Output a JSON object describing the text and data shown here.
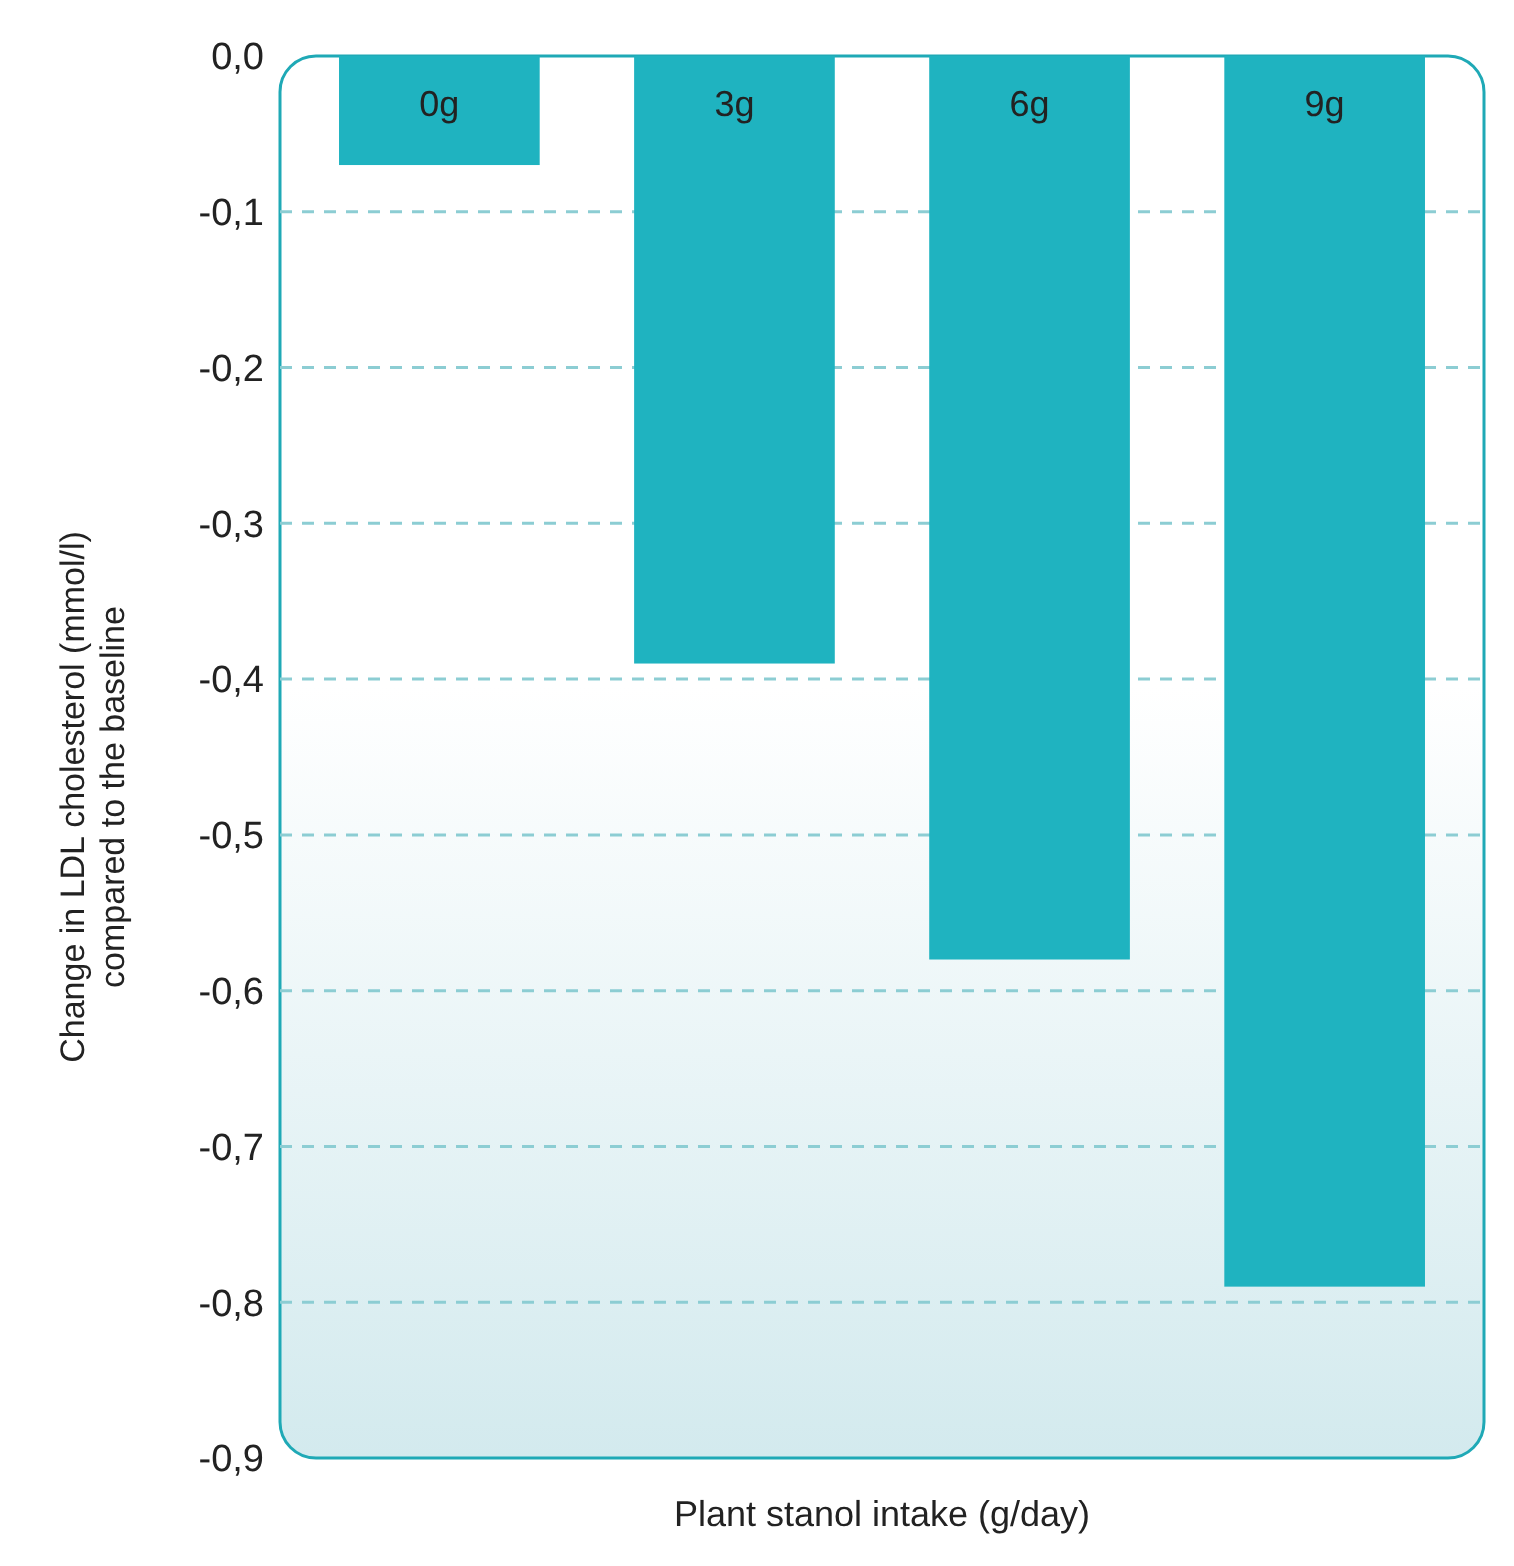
{
  "chart_data": {
    "type": "bar",
    "categories": [
      "0g",
      "3g",
      "6g",
      "9g"
    ],
    "values": [
      -0.07,
      -0.39,
      -0.58,
      -0.79
    ],
    "color": "#1fb3c0",
    "xlabel": "Plant stanol intake (g/day)",
    "ylabel": "Change in LDL cholesterol (mmol/l) compared to the baseline",
    "ylim": [
      -0.9,
      0
    ],
    "yticks": [
      {
        "value": 0,
        "label": "0,0"
      },
      {
        "value": -0.1,
        "label": "-0,1"
      },
      {
        "value": -0.2,
        "label": "-0,2"
      },
      {
        "value": -0.3,
        "label": "-0,3"
      },
      {
        "value": -0.4,
        "label": "-0,4"
      },
      {
        "value": -0.5,
        "label": "-0,5"
      },
      {
        "value": -0.6,
        "label": "-0,6"
      },
      {
        "value": -0.7,
        "label": "-0,7"
      },
      {
        "value": -0.8,
        "label": "-0,8"
      },
      {
        "value": -0.9,
        "label": "-0,9"
      }
    ],
    "grid": "y",
    "line_style": "dashed"
  }
}
